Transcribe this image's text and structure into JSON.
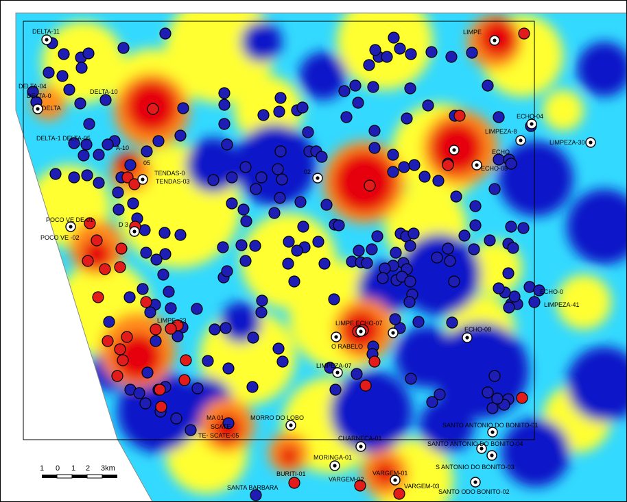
{
  "colors": {
    "low": "#0a14c8",
    "low_mid": "#33d9ff",
    "mid": "#ffff33",
    "high_mid": "#ff8c1a",
    "high": "#e6000a",
    "well_blue": "#1e1eb4",
    "well_red": "#e21b1b",
    "well_white": "#ffffff"
  },
  "icons": {
    "well_symbol": "circle-dot-icon",
    "wells": "circle-icon"
  },
  "labels": {
    "delta_11": "DELTA-11",
    "delta_04": "DELTA-04",
    "delta_0": "DELTA-0",
    "delta_10": "DELTA-10",
    "delta_a": "DELTA",
    "delta_1_delta_05": "DELTA-1 DELTA-05",
    "tendas_0": "TENDAS-0",
    "tendas_03": "TENDAS-03",
    "a05": "05",
    "a10": "A-10",
    "poco_01": "POCO VE DE-01",
    "poco_02": "POCO VE   -02",
    "d3": "D       3",
    "limpeza_23": "LIMPE    -23",
    "limpeza_top": "LIMPE",
    "echo_04": "ECHO-04",
    "limpeza_8": "LIMPEZA-8",
    "limpeza_30": "LIMPEZA-30",
    "echo_05": "ECHO-05",
    "echo_h": "ECHO",
    "a02": "02",
    "echo_0": "ECHO-0",
    "limpeza_41": "LIMPEZA-41",
    "limp_echo_07": "LIMPE   ECHO-07",
    "echo_08": "ECHO-08",
    "rabelo": "O RABELO",
    "limpeza_07": "LIMPEZA-07",
    "morro_lobo": "MORRO DO LOBO",
    "ma_01": "MA          01",
    "scate_1": "SCATE-",
    "scate_05": "TE-        SCATE-05",
    "santo_01": "SANTO ANTONIO DO BONITO-01",
    "charneca": "CHARNECA-01",
    "santo_04": "SANTO ANTONIO DO BONITO-04",
    "moringa": "MORINGA-01",
    "santo_03": "S     ANTONIO DO BONITO-03",
    "buriti": "BURITI-01",
    "vargem_01": "VARGEM-01",
    "vargem_02": "VARGEM-02",
    "vargem_03": "VARGEM-03",
    "santa_barbara": "SANTA BARBARA",
    "santo_02": "SANTO          ODO BONITO-02"
  },
  "scalebar": {
    "ticks": [
      "1",
      "0",
      "1",
      "2",
      "3km"
    ]
  }
}
